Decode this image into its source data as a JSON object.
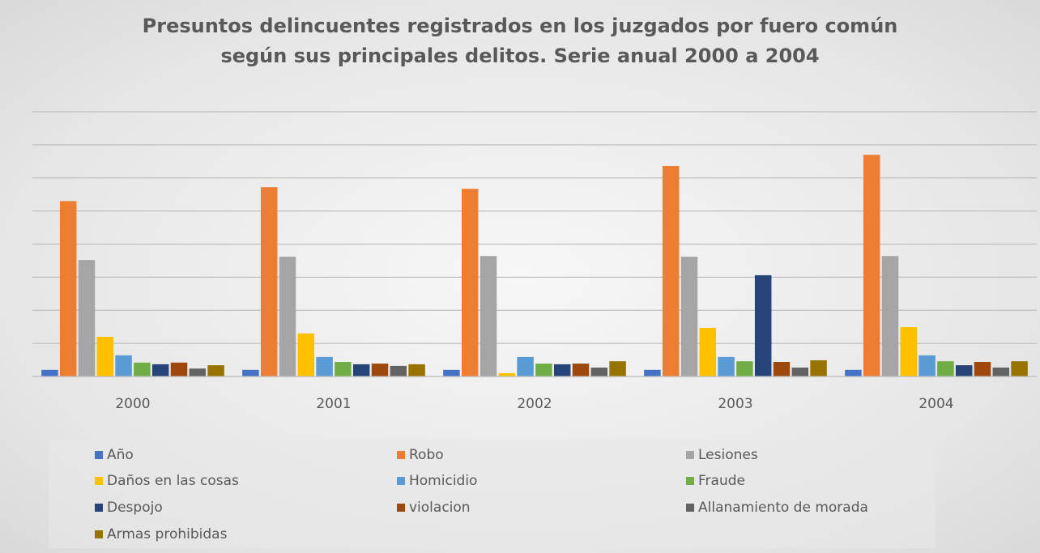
{
  "chart_data": {
    "type": "bar",
    "title": "Presuntos delincuentes registrados en los juzgados por fuero común según sus principales delitos. Serie anual 2000 a 2004",
    "categories": [
      "2000",
      "2001",
      "2002",
      "2003",
      "2004"
    ],
    "series": [
      {
        "name": "Año",
        "color": "#4472c4",
        "values": [
          2000,
          2001,
          2002,
          2003,
          2004
        ]
      },
      {
        "name": "Robo",
        "color": "#ed7d31",
        "values": [
          53000,
          57200,
          56700,
          63600,
          67000
        ]
      },
      {
        "name": "Lesiones",
        "color": "#a5a5a5",
        "values": [
          35200,
          36200,
          36400,
          36200,
          36400
        ]
      },
      {
        "name": "Daños en las cosas",
        "color": "#ffc000",
        "values": [
          12000,
          13000,
          1000,
          14700,
          14900
        ]
      },
      {
        "name": "Homicidio",
        "color": "#5b9bd5",
        "values": [
          6400,
          5900,
          5900,
          5900,
          6400
        ]
      },
      {
        "name": "Fraude",
        "color": "#70ad47",
        "values": [
          4200,
          4400,
          3900,
          4600,
          4600
        ]
      },
      {
        "name": "Despojo",
        "color": "#264478",
        "values": [
          3700,
          3700,
          3700,
          30600,
          3400
        ]
      },
      {
        "name": "violacion",
        "color": "#9e480e",
        "values": [
          4200,
          3900,
          3900,
          4400,
          4400
        ]
      },
      {
        "name": "Allanamiento de morada",
        "color": "#636363",
        "values": [
          2400,
          3200,
          2700,
          2700,
          2700
        ]
      },
      {
        "name": "Armas prohibidas",
        "color": "#997300",
        "values": [
          3400,
          3700,
          4600,
          4900,
          4600
        ]
      }
    ],
    "ylim": [
      0,
      80000
    ],
    "yticks": [
      0,
      10000,
      20000,
      30000,
      40000,
      50000,
      60000,
      70000,
      80000
    ],
    "grid": true,
    "legend": "bottom"
  }
}
